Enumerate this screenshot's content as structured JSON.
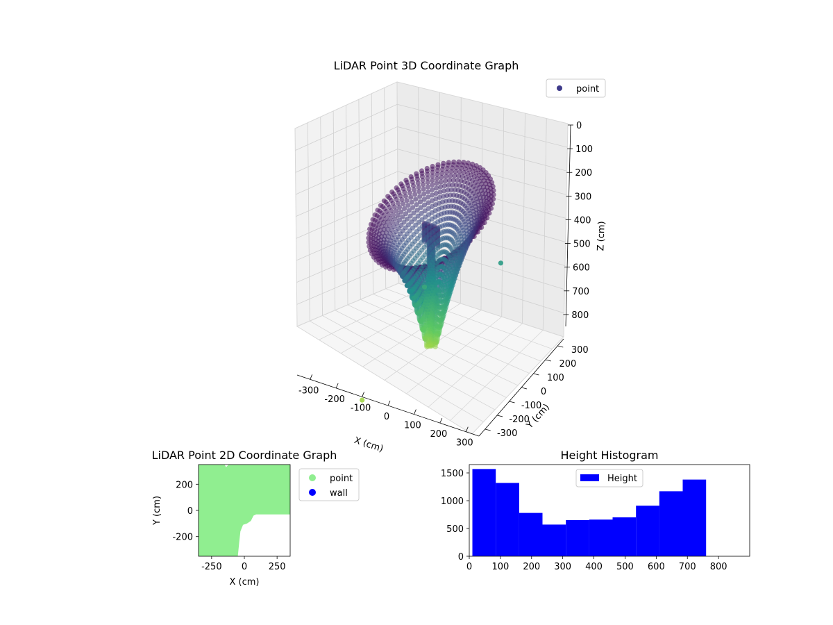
{
  "chart_data": [
    {
      "type": "scatter",
      "title": "LiDAR Point 3D Coordinate Graph",
      "xlabel": "X (cm)",
      "ylabel": "Y (cm)",
      "zlabel": "Z (cm)",
      "xlim": [
        -350,
        350
      ],
      "ylim": [
        -350,
        350
      ],
      "zlim": [
        0,
        850
      ],
      "x_ticks": [
        "-300",
        "-200",
        "-100",
        "0",
        "100",
        "200",
        "300"
      ],
      "y_ticks": [
        "-300",
        "-200",
        "-100",
        "0",
        "100",
        "200",
        "300"
      ],
      "z_ticks": [
        "0",
        "100",
        "200",
        "300",
        "400",
        "500",
        "600",
        "700",
        "800"
      ],
      "legend": {
        "label": "point",
        "color": "#3e3a8a",
        "placement": "top-right"
      },
      "colormap": "viridis",
      "grid": true,
      "sample_points": [
        [
          -130,
          90,
          420
        ],
        [
          -160,
          -350,
          600
        ],
        [
          230,
          280,
          380
        ]
      ]
    },
    {
      "type": "scatter",
      "title": "LiDAR Point 2D Coordinate Graph",
      "xlabel": "X (cm)",
      "ylabel": "Y (cm)",
      "xlim": [
        -350,
        350
      ],
      "ylim": [
        -350,
        350
      ],
      "x_ticks": [
        "-250",
        "0",
        "250"
      ],
      "y_ticks": [
        "200",
        "0",
        "-200"
      ],
      "series": [
        {
          "name": "point",
          "color": "#90ee90"
        },
        {
          "name": "wall",
          "color": "#0000ff"
        }
      ],
      "legend_placement": "outside-right",
      "point_region_boundary": [
        [
          -350,
          350
        ],
        [
          -150,
          350
        ],
        [
          -140,
          330
        ],
        [
          -120,
          350
        ],
        [
          350,
          350
        ],
        [
          350,
          -30
        ],
        [
          90,
          -30
        ],
        [
          70,
          -40
        ],
        [
          50,
          -80
        ],
        [
          20,
          -100
        ],
        [
          -10,
          -110
        ],
        [
          -30,
          -160
        ],
        [
          -40,
          -250
        ],
        [
          -50,
          -350
        ],
        [
          -350,
          -350
        ]
      ]
    },
    {
      "type": "bar",
      "title": "Height Histogram",
      "xlabel": "",
      "ylabel": "",
      "xlim": [
        0,
        900
      ],
      "ylim": [
        0,
        1650
      ],
      "x_ticks": [
        "0",
        "100",
        "200",
        "300",
        "400",
        "500",
        "600",
        "700",
        "800"
      ],
      "y_ticks": [
        "0",
        "500",
        "1000",
        "1500"
      ],
      "bin_edges": [
        10,
        85,
        160,
        235,
        310,
        385,
        460,
        535,
        610,
        685,
        760
      ],
      "values": [
        1570,
        1320,
        780,
        570,
        650,
        660,
        700,
        910,
        1170,
        1380
      ],
      "series": [
        {
          "name": "Height",
          "color": "#0000ff"
        }
      ],
      "legend_placement": "upper center"
    }
  ]
}
